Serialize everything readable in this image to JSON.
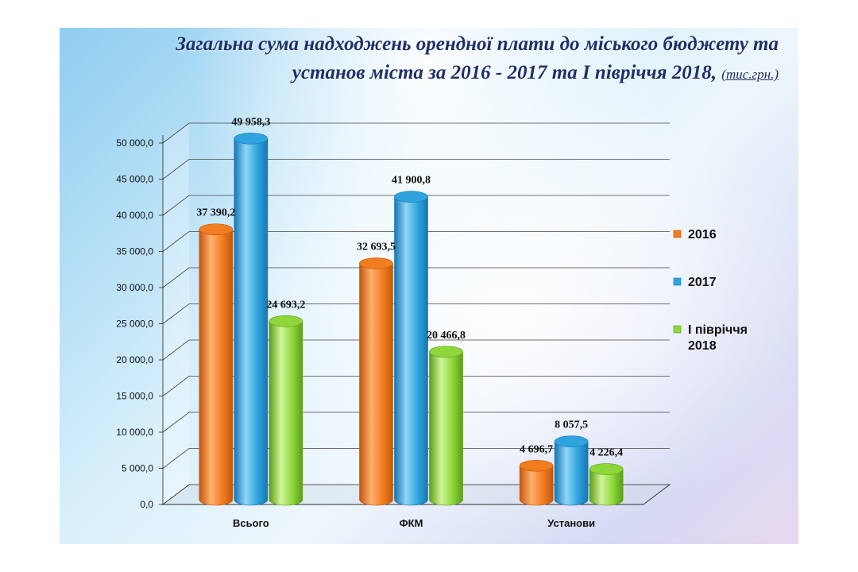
{
  "title": {
    "line1": "Загальна сума надходжень орендної плати до міського бюджету та",
    "line2": "установ міста за 2016 - 2017 та І півріччя 2018,",
    "unit": "(тис.грн.)"
  },
  "chart_data": {
    "type": "bar",
    "categories": [
      "Всього",
      "ФКМ",
      "Установи"
    ],
    "series": [
      {
        "name": "2016",
        "values": [
          37390.2,
          32693.5,
          4696.7
        ],
        "labels": [
          "37 390,2",
          "32 693,5",
          "4 696,7"
        ],
        "color": "#f07d1f",
        "dark": "#c4560a",
        "light": "#ffb070"
      },
      {
        "name": "2017",
        "values": [
          49958.3,
          41900.8,
          8057.5
        ],
        "labels": [
          "49 958,3",
          "41 900,8",
          "8 057,5"
        ],
        "color": "#2fa3de",
        "dark": "#1676b2",
        "light": "#8fd6f7"
      },
      {
        "name": "І півріччя 2018",
        "values": [
          24693.2,
          20466.8,
          4226.4
        ],
        "labels": [
          "24 693,2",
          "20 466,8",
          "4 226,4"
        ],
        "color": "#8fd63b",
        "dark": "#5a9e17",
        "light": "#d0f59a"
      }
    ],
    "legend_lines": [
      [
        "2016"
      ],
      [
        "2017"
      ],
      [
        "І півріччя",
        "2018"
      ]
    ],
    "yticks": [
      "0,0",
      "5 000,0",
      "10 000,0",
      "15 000,0",
      "20 000,0",
      "25 000,0",
      "30 000,0",
      "35 000,0",
      "40 000,0",
      "45 000,0",
      "50 000,0"
    ],
    "ylim": [
      0,
      50000
    ],
    "ystep": 5000,
    "grid": true,
    "legend_position": "right"
  }
}
